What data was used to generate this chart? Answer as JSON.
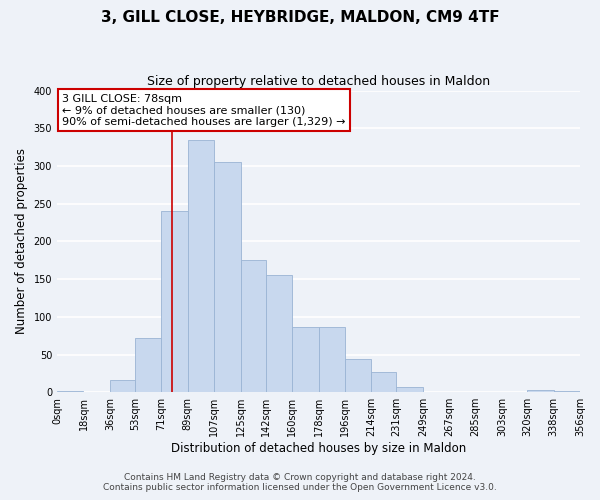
{
  "title": "3, GILL CLOSE, HEYBRIDGE, MALDON, CM9 4TF",
  "subtitle": "Size of property relative to detached houses in Maldon",
  "xlabel": "Distribution of detached houses by size in Maldon",
  "ylabel": "Number of detached properties",
  "bar_edges": [
    0,
    18,
    36,
    53,
    71,
    89,
    107,
    125,
    142,
    160,
    178,
    196,
    214,
    231,
    249,
    267,
    285,
    303,
    320,
    338,
    356
  ],
  "bar_heights": [
    1,
    0,
    16,
    72,
    240,
    335,
    305,
    175,
    155,
    87,
    87,
    44,
    27,
    7,
    0,
    0,
    0,
    0,
    3,
    2
  ],
  "bar_color": "#c8d8ee",
  "bar_edgecolor": "#9ab4d4",
  "vline_x": 78,
  "vline_color": "#cc0000",
  "annotation_text_line1": "3 GILL CLOSE: 78sqm",
  "annotation_text_line2": "← 9% of detached houses are smaller (130)",
  "annotation_text_line3": "90% of semi-detached houses are larger (1,329) →",
  "annotation_box_edgecolor": "#cc0000",
  "annotation_box_facecolor": "#ffffff",
  "ylim": [
    0,
    400
  ],
  "yticks": [
    0,
    50,
    100,
    150,
    200,
    250,
    300,
    350,
    400
  ],
  "xtick_labels": [
    "0sqm",
    "18sqm",
    "36sqm",
    "53sqm",
    "71sqm",
    "89sqm",
    "107sqm",
    "125sqm",
    "142sqm",
    "160sqm",
    "178sqm",
    "196sqm",
    "214sqm",
    "231sqm",
    "249sqm",
    "267sqm",
    "285sqm",
    "303sqm",
    "320sqm",
    "338sqm",
    "356sqm"
  ],
  "footer_line1": "Contains HM Land Registry data © Crown copyright and database right 2024.",
  "footer_line2": "Contains public sector information licensed under the Open Government Licence v3.0.",
  "bg_color": "#eef2f8",
  "plot_bg_color": "#eef2f8",
  "grid_color": "#ffffff",
  "title_fontsize": 11,
  "subtitle_fontsize": 9,
  "axis_label_fontsize": 8.5,
  "tick_fontsize": 7,
  "footer_fontsize": 6.5
}
